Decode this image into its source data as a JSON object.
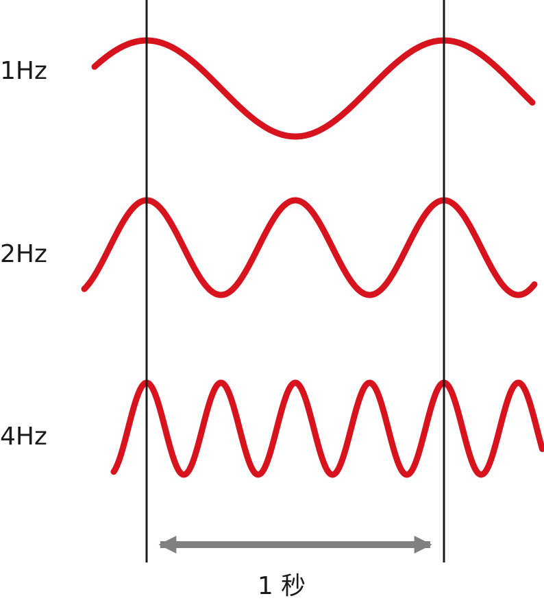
{
  "colors": {
    "wave": "#d7141e",
    "marker_line": "#1a1a1a",
    "arrow": "#808080",
    "text": "#1a1a1a"
  },
  "waves": [
    {
      "label": "1Hz",
      "frequency_hz": 1
    },
    {
      "label": "2Hz",
      "frequency_hz": 2
    },
    {
      "label": "4Hz",
      "frequency_hz": 4
    }
  ],
  "duration": {
    "label": "1 秒",
    "seconds": 1,
    "arrow_icon": "double-headed-arrow-icon"
  }
}
